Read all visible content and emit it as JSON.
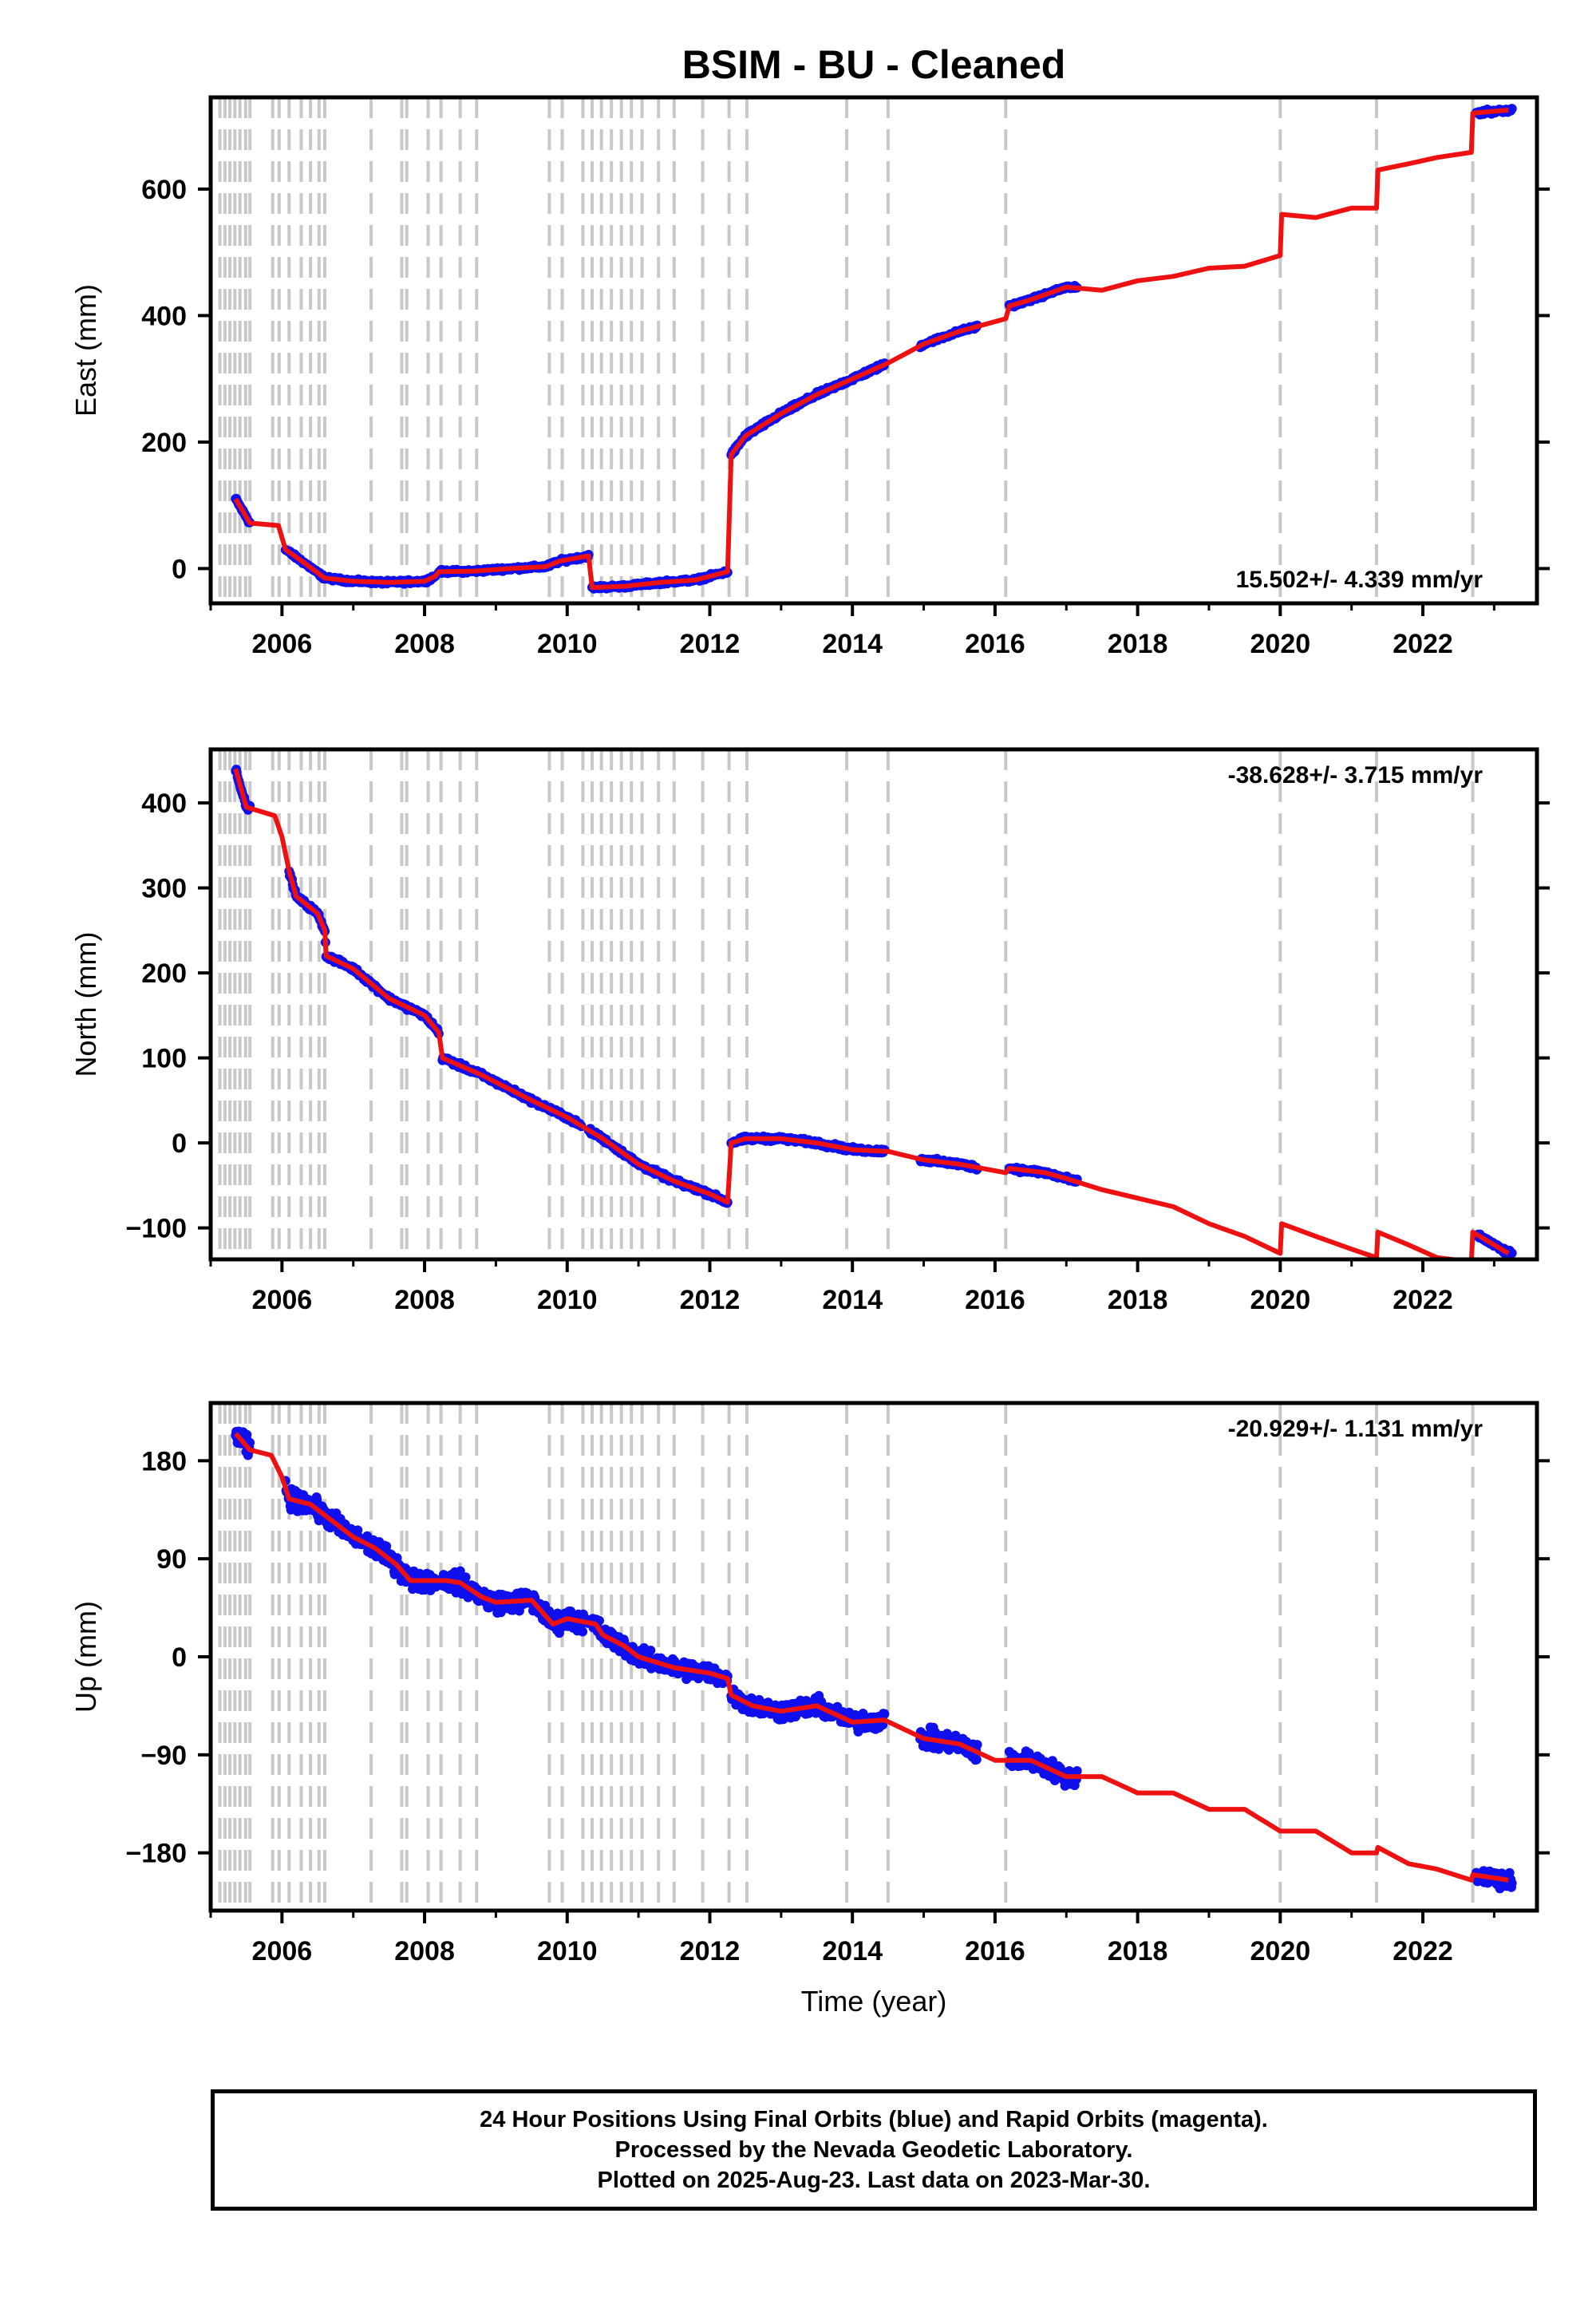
{
  "chart_data": {
    "title": "BSIM  - BU - Cleaned",
    "xlabel": "Time (year)",
    "x_ticks": [
      "2006",
      "2008",
      "2010",
      "2012",
      "2014",
      "2016",
      "2018",
      "2020",
      "2022"
    ],
    "xlim": [
      2005.0,
      2023.6
    ],
    "equipment_changes": [
      2005.13,
      2005.2,
      2005.27,
      2005.34,
      2005.41,
      2005.49,
      2005.55,
      2005.87,
      2005.96,
      2006.1,
      2006.27,
      2006.4,
      2006.52,
      2006.6,
      2007.25,
      2007.68,
      2007.75,
      2008.05,
      2008.23,
      2008.5,
      2008.73,
      2009.75,
      2009.93,
      2010.22,
      2010.35,
      2010.48,
      2010.62,
      2010.76,
      2010.9,
      2011.05,
      2011.28,
      2011.5,
      2011.9,
      2012.27,
      2012.52,
      2013.92,
      2014.5,
      2016.15,
      2020.0,
      2021.35,
      2022.7
    ],
    "panels": [
      {
        "type": "scatter",
        "name": "east",
        "ylabel": "East (mm)",
        "ylim": [
          -55,
          745
        ],
        "y_ticks": [
          0,
          200,
          400,
          600
        ],
        "rate": "15.502+/- 4.339 mm/yr",
        "rate_position": "bottom-right",
        "model": [
          [
            2005.35,
            110
          ],
          [
            2005.55,
            72
          ],
          [
            2005.95,
            68
          ],
          [
            2006.05,
            30
          ],
          [
            2006.3,
            10
          ],
          [
            2006.6,
            -15
          ],
          [
            2007.0,
            -20
          ],
          [
            2007.5,
            -22
          ],
          [
            2008.0,
            -20
          ],
          [
            2008.15,
            -12
          ],
          [
            2008.2,
            -5
          ],
          [
            2008.7,
            -4
          ],
          [
            2009.2,
            0
          ],
          [
            2009.7,
            3
          ],
          [
            2009.9,
            12
          ],
          [
            2010.3,
            20
          ],
          [
            2010.35,
            -30
          ],
          [
            2010.8,
            -28
          ],
          [
            2011.3,
            -22
          ],
          [
            2011.8,
            -18
          ],
          [
            2012.25,
            -5
          ],
          [
            2012.3,
            180
          ],
          [
            2012.5,
            210
          ],
          [
            2013.0,
            245
          ],
          [
            2013.5,
            275
          ],
          [
            2014.0,
            300
          ],
          [
            2014.5,
            325
          ],
          [
            2015.0,
            355
          ],
          [
            2015.5,
            375
          ],
          [
            2016.15,
            395
          ],
          [
            2016.2,
            415
          ],
          [
            2016.5,
            425
          ],
          [
            2017.0,
            445
          ],
          [
            2017.5,
            440
          ],
          [
            2018.0,
            455
          ],
          [
            2018.5,
            462
          ],
          [
            2019.0,
            475
          ],
          [
            2019.5,
            478
          ],
          [
            2020.0,
            495
          ],
          [
            2020.02,
            560
          ],
          [
            2020.5,
            555
          ],
          [
            2021.0,
            570
          ],
          [
            2021.35,
            570
          ],
          [
            2021.37,
            630
          ],
          [
            2021.8,
            640
          ],
          [
            2022.2,
            650
          ],
          [
            2022.68,
            658
          ],
          [
            2022.7,
            720
          ],
          [
            2023.2,
            725
          ]
        ],
        "data_segments": [
          {
            "start": 2005.35,
            "end": 2005.55,
            "jitter": 4
          },
          {
            "start": 2006.05,
            "end": 2008.15,
            "jitter": 4
          },
          {
            "start": 2008.2,
            "end": 2010.3,
            "jitter": 4
          },
          {
            "start": 2010.35,
            "end": 2012.25,
            "jitter": 4
          },
          {
            "start": 2012.3,
            "end": 2014.45,
            "jitter": 5
          },
          {
            "start": 2014.95,
            "end": 2015.75,
            "jitter": 4
          },
          {
            "start": 2016.2,
            "end": 2017.15,
            "jitter": 4
          },
          {
            "start": 2022.75,
            "end": 2023.25,
            "jitter": 5
          }
        ]
      },
      {
        "type": "scatter",
        "name": "north",
        "ylabel": "North (mm)",
        "ylim": [
          -137,
          463
        ],
        "y_ticks": [
          400,
          300,
          200,
          100,
          0,
          -100
        ],
        "rate": "-38.628+/- 3.715 mm/yr",
        "rate_position": "top-right",
        "model": [
          [
            2005.35,
            440
          ],
          [
            2005.5,
            395
          ],
          [
            2005.9,
            385
          ],
          [
            2006.0,
            360
          ],
          [
            2006.1,
            320
          ],
          [
            2006.2,
            290
          ],
          [
            2006.5,
            270
          ],
          [
            2006.6,
            250
          ],
          [
            2006.62,
            220
          ],
          [
            2007.0,
            205
          ],
          [
            2007.5,
            170
          ],
          [
            2008.0,
            150
          ],
          [
            2008.2,
            130
          ],
          [
            2008.25,
            100
          ],
          [
            2008.8,
            80
          ],
          [
            2009.5,
            50
          ],
          [
            2010.0,
            30
          ],
          [
            2010.5,
            5
          ],
          [
            2011.0,
            -25
          ],
          [
            2011.5,
            -45
          ],
          [
            2012.0,
            -60
          ],
          [
            2012.25,
            -70
          ],
          [
            2012.3,
            0
          ],
          [
            2012.5,
            5
          ],
          [
            2013.0,
            5
          ],
          [
            2013.5,
            0
          ],
          [
            2014.0,
            -8
          ],
          [
            2014.5,
            -10
          ],
          [
            2015.0,
            -20
          ],
          [
            2015.5,
            -25
          ],
          [
            2016.15,
            -35
          ],
          [
            2016.2,
            -30
          ],
          [
            2016.7,
            -35
          ],
          [
            2017.0,
            -42
          ],
          [
            2017.5,
            -55
          ],
          [
            2018.0,
            -65
          ],
          [
            2018.5,
            -75
          ],
          [
            2019.0,
            -95
          ],
          [
            2019.5,
            -110
          ],
          [
            2020.0,
            -130
          ],
          [
            2020.02,
            -95
          ],
          [
            2020.5,
            -110
          ],
          [
            2021.0,
            -125
          ],
          [
            2021.35,
            -135
          ],
          [
            2021.37,
            -105
          ],
          [
            2021.8,
            -120
          ],
          [
            2022.2,
            -135
          ],
          [
            2022.68,
            -140
          ],
          [
            2022.7,
            -105
          ],
          [
            2023.2,
            -130
          ]
        ],
        "data_segments": [
          {
            "start": 2005.35,
            "end": 2005.55,
            "jitter": 4
          },
          {
            "start": 2006.1,
            "end": 2008.2,
            "jitter": 4
          },
          {
            "start": 2008.25,
            "end": 2010.2,
            "jitter": 4
          },
          {
            "start": 2010.3,
            "end": 2012.25,
            "jitter": 4
          },
          {
            "start": 2012.3,
            "end": 2014.45,
            "jitter": 4
          },
          {
            "start": 2014.95,
            "end": 2015.75,
            "jitter": 4
          },
          {
            "start": 2016.2,
            "end": 2017.15,
            "jitter": 4
          },
          {
            "start": 2022.75,
            "end": 2023.25,
            "jitter": 4
          }
        ]
      },
      {
        "type": "scatter",
        "name": "up",
        "ylabel": "Up (mm)",
        "ylim": [
          -233,
          233
        ],
        "y_ticks": [
          180,
          90,
          0,
          -90,
          -180
        ],
        "rate": "-20.929+/- 1.131 mm/yr",
        "rate_position": "top-right",
        "model": [
          [
            2005.35,
            205
          ],
          [
            2005.55,
            190
          ],
          [
            2005.85,
            185
          ],
          [
            2006.0,
            165
          ],
          [
            2006.1,
            145
          ],
          [
            2006.4,
            140
          ],
          [
            2006.6,
            130
          ],
          [
            2007.0,
            110
          ],
          [
            2007.3,
            100
          ],
          [
            2007.6,
            85
          ],
          [
            2007.8,
            70
          ],
          [
            2008.0,
            70
          ],
          [
            2008.3,
            70
          ],
          [
            2008.5,
            68
          ],
          [
            2008.8,
            55
          ],
          [
            2009.0,
            50
          ],
          [
            2009.5,
            52
          ],
          [
            2009.8,
            30
          ],
          [
            2010.0,
            35
          ],
          [
            2010.4,
            30
          ],
          [
            2010.5,
            20
          ],
          [
            2010.8,
            10
          ],
          [
            2011.0,
            0
          ],
          [
            2011.5,
            -10
          ],
          [
            2012.0,
            -15
          ],
          [
            2012.25,
            -20
          ],
          [
            2012.3,
            -35
          ],
          [
            2012.6,
            -45
          ],
          [
            2013.0,
            -50
          ],
          [
            2013.5,
            -45
          ],
          [
            2014.0,
            -60
          ],
          [
            2014.45,
            -58
          ],
          [
            2015.0,
            -75
          ],
          [
            2015.5,
            -80
          ],
          [
            2016.0,
            -95
          ],
          [
            2016.15,
            -95
          ],
          [
            2016.5,
            -95
          ],
          [
            2017.0,
            -110
          ],
          [
            2017.5,
            -110
          ],
          [
            2018.0,
            -125
          ],
          [
            2018.5,
            -125
          ],
          [
            2019.0,
            -140
          ],
          [
            2019.5,
            -140
          ],
          [
            2020.0,
            -160
          ],
          [
            2020.02,
            -160
          ],
          [
            2020.5,
            -160
          ],
          [
            2021.0,
            -180
          ],
          [
            2021.35,
            -180
          ],
          [
            2021.37,
            -175
          ],
          [
            2021.8,
            -190
          ],
          [
            2022.2,
            -195
          ],
          [
            2022.68,
            -205
          ],
          [
            2022.7,
            -200
          ],
          [
            2023.2,
            -205
          ]
        ],
        "data_segments": [
          {
            "start": 2005.35,
            "end": 2005.55,
            "jitter": 14
          },
          {
            "start": 2006.05,
            "end": 2008.2,
            "jitter": 13
          },
          {
            "start": 2008.25,
            "end": 2010.3,
            "jitter": 13
          },
          {
            "start": 2010.35,
            "end": 2012.25,
            "jitter": 12
          },
          {
            "start": 2012.3,
            "end": 2014.45,
            "jitter": 12
          },
          {
            "start": 2014.95,
            "end": 2015.75,
            "jitter": 13
          },
          {
            "start": 2016.2,
            "end": 2017.15,
            "jitter": 12
          },
          {
            "start": 2022.75,
            "end": 2023.25,
            "jitter": 12
          }
        ]
      }
    ],
    "colors": {
      "data": "#1010ee",
      "model": "#ee1111",
      "equipment_change": "#c8c8c8",
      "frame": "#000000"
    }
  },
  "footer": {
    "line1": "24 Hour Positions Using Final Orbits (blue) and Rapid Orbits (magenta).",
    "line2": "Processed by the Nevada Geodetic Laboratory.",
    "line3": "Plotted on 2025-Aug-23. Last data on 2023-Mar-30."
  }
}
